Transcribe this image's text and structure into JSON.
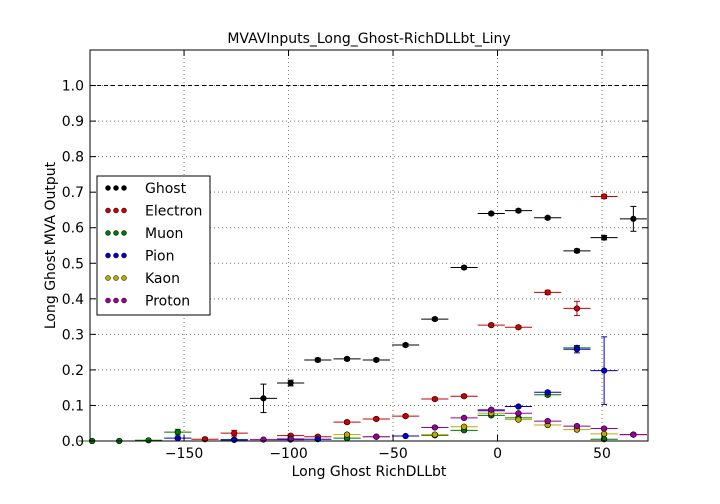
{
  "chart_data": {
    "type": "scatter",
    "title": "MVAVInputs_Long_Ghost-RichDLLbt_Liny",
    "xlabel": "Long Ghost RichDLLbt",
    "ylabel": "Long Ghost MVA Output",
    "xlim": [
      -195,
      72
    ],
    "ylim": [
      0,
      1.1
    ],
    "xticks": [
      -150,
      -100,
      -50,
      0,
      50
    ],
    "xtick_labels": [
      "−150",
      "−100",
      "−50",
      "0",
      "50"
    ],
    "yticks": [
      0.0,
      0.1,
      0.2,
      0.3,
      0.4,
      0.5,
      0.6,
      0.7,
      0.8,
      0.9,
      1.0
    ],
    "ytick_labels": [
      "0.0",
      "0.1",
      "0.2",
      "0.3",
      "0.4",
      "0.5",
      "0.6",
      "0.7",
      "0.8",
      "0.9",
      "1.0"
    ],
    "grid": true,
    "reference_line": 1.0,
    "legend_position": "center-left",
    "series": [
      {
        "name": "Ghost",
        "color": "#000000",
        "points": [
          {
            "x": -112,
            "y": 0.12,
            "xerr": 6.5,
            "yerr": 0.04
          },
          {
            "x": -99,
            "y": 0.163,
            "xerr": 6.5,
            "yerr": 0.008
          },
          {
            "x": -86,
            "y": 0.228,
            "xerr": 6.5,
            "yerr": 0.005
          },
          {
            "x": -72,
            "y": 0.231,
            "xerr": 6.5,
            "yerr": 0.004
          },
          {
            "x": -58,
            "y": 0.228,
            "xerr": 6.5,
            "yerr": 0.004
          },
          {
            "x": -44,
            "y": 0.27,
            "xerr": 6.5,
            "yerr": 0.004
          },
          {
            "x": -30,
            "y": 0.343,
            "xerr": 6.5,
            "yerr": 0.004
          },
          {
            "x": -16,
            "y": 0.488,
            "xerr": 6.5,
            "yerr": 0.004
          },
          {
            "x": -3,
            "y": 0.64,
            "xerr": 6.5,
            "yerr": 0.004
          },
          {
            "x": 10,
            "y": 0.648,
            "xerr": 6.5,
            "yerr": 0.004
          },
          {
            "x": 24,
            "y": 0.628,
            "xerr": 6.5,
            "yerr": 0.004
          },
          {
            "x": 38,
            "y": 0.535,
            "xerr": 6.5,
            "yerr": 0.005
          },
          {
            "x": 51,
            "y": 0.572,
            "xerr": 6.5,
            "yerr": 0.006
          },
          {
            "x": 65,
            "y": 0.625,
            "xerr": 6.5,
            "yerr": 0.035
          }
        ]
      },
      {
        "name": "Electron",
        "color": "#cc0000",
        "points": [
          {
            "x": -140,
            "y": 0.005,
            "xerr": 6.5,
            "yerr": 0.004
          },
          {
            "x": -126,
            "y": 0.022,
            "xerr": 6.5,
            "yerr": 0.008
          },
          {
            "x": -99,
            "y": 0.015,
            "xerr": 6.5,
            "yerr": 0.004
          },
          {
            "x": -86,
            "y": 0.012,
            "xerr": 6.5,
            "yerr": 0.004
          },
          {
            "x": -72,
            "y": 0.053,
            "xerr": 6.5,
            "yerr": 0.004
          },
          {
            "x": -58,
            "y": 0.062,
            "xerr": 6.5,
            "yerr": 0.004
          },
          {
            "x": -44,
            "y": 0.07,
            "xerr": 6.5,
            "yerr": 0.004
          },
          {
            "x": -30,
            "y": 0.118,
            "xerr": 6.5,
            "yerr": 0.004
          },
          {
            "x": -16,
            "y": 0.126,
            "xerr": 6.5,
            "yerr": 0.004
          },
          {
            "x": -3,
            "y": 0.326,
            "xerr": 6.5,
            "yerr": 0.004
          },
          {
            "x": 10,
            "y": 0.32,
            "xerr": 6.5,
            "yerr": 0.004
          },
          {
            "x": 24,
            "y": 0.418,
            "xerr": 6.5,
            "yerr": 0.006
          },
          {
            "x": 38,
            "y": 0.373,
            "xerr": 6.5,
            "yerr": 0.02
          },
          {
            "x": 51,
            "y": 0.688,
            "xerr": 6.5,
            "yerr": 0.006
          },
          {
            "x": 65,
            "y": 0.018,
            "xerr": 6.5,
            "yerr": 0.003
          }
        ]
      },
      {
        "name": "Muon",
        "color": "#007700",
        "points": [
          {
            "x": -194,
            "y": 0.0,
            "xerr": 6.5,
            "yerr": 0.002
          },
          {
            "x": -181,
            "y": 0.0,
            "xerr": 6.5,
            "yerr": 0.002
          },
          {
            "x": -167,
            "y": 0.002,
            "xerr": 6.5,
            "yerr": 0.002
          },
          {
            "x": -153,
            "y": 0.025,
            "xerr": 6.5,
            "yerr": 0.008
          },
          {
            "x": -126,
            "y": 0.004,
            "xerr": 6.5,
            "yerr": 0.003
          },
          {
            "x": -72,
            "y": 0.008,
            "xerr": 6.5,
            "yerr": 0.003
          },
          {
            "x": -30,
            "y": 0.016,
            "xerr": 6.5,
            "yerr": 0.003
          },
          {
            "x": -16,
            "y": 0.03,
            "xerr": 6.5,
            "yerr": 0.003
          },
          {
            "x": -3,
            "y": 0.072,
            "xerr": 6.5,
            "yerr": 0.003
          },
          {
            "x": 10,
            "y": 0.065,
            "xerr": 6.5,
            "yerr": 0.003
          },
          {
            "x": 24,
            "y": 0.13,
            "xerr": 6.5,
            "yerr": 0.004
          },
          {
            "x": 38,
            "y": 0.262,
            "xerr": 6.5,
            "yerr": 0.006
          },
          {
            "x": 51,
            "y": 0.005,
            "xerr": 6.5,
            "yerr": 0.003
          }
        ]
      },
      {
        "name": "Pion",
        "color": "#0000cc",
        "points": [
          {
            "x": -153,
            "y": 0.008,
            "xerr": 6.5,
            "yerr": 0.003
          },
          {
            "x": -126,
            "y": 0.003,
            "xerr": 6.5,
            "yerr": 0.002
          },
          {
            "x": -99,
            "y": 0.004,
            "xerr": 6.5,
            "yerr": 0.002
          },
          {
            "x": -86,
            "y": 0.005,
            "xerr": 6.5,
            "yerr": 0.002
          },
          {
            "x": -44,
            "y": 0.014,
            "xerr": 6.5,
            "yerr": 0.002
          },
          {
            "x": -3,
            "y": 0.085,
            "xerr": 6.5,
            "yerr": 0.003
          },
          {
            "x": 10,
            "y": 0.097,
            "xerr": 6.5,
            "yerr": 0.003
          },
          {
            "x": 24,
            "y": 0.137,
            "xerr": 6.5,
            "yerr": 0.004
          },
          {
            "x": 38,
            "y": 0.258,
            "xerr": 6.5,
            "yerr": 0.01
          },
          {
            "x": 51,
            "y": 0.198,
            "xerr": 6.5,
            "yerr": 0.095
          }
        ]
      },
      {
        "name": "Kaon",
        "color": "#bbaa00",
        "points": [
          {
            "x": -72,
            "y": 0.018,
            "xerr": 6.5,
            "yerr": 0.003
          },
          {
            "x": -58,
            "y": 0.012,
            "xerr": 6.5,
            "yerr": 0.003
          },
          {
            "x": -30,
            "y": 0.018,
            "xerr": 6.5,
            "yerr": 0.003
          },
          {
            "x": -16,
            "y": 0.04,
            "xerr": 6.5,
            "yerr": 0.003
          },
          {
            "x": -3,
            "y": 0.078,
            "xerr": 6.5,
            "yerr": 0.003
          },
          {
            "x": 10,
            "y": 0.06,
            "xerr": 6.5,
            "yerr": 0.003
          },
          {
            "x": 24,
            "y": 0.045,
            "xerr": 6.5,
            "yerr": 0.003
          },
          {
            "x": 38,
            "y": 0.032,
            "xerr": 6.5,
            "yerr": 0.003
          },
          {
            "x": 51,
            "y": 0.02,
            "xerr": 6.5,
            "yerr": 0.003
          }
        ]
      },
      {
        "name": "Proton",
        "color": "#990099",
        "points": [
          {
            "x": -112,
            "y": 0.004,
            "xerr": 6.5,
            "yerr": 0.002
          },
          {
            "x": -99,
            "y": 0.006,
            "xerr": 6.5,
            "yerr": 0.002
          },
          {
            "x": -58,
            "y": 0.012,
            "xerr": 6.5,
            "yerr": 0.002
          },
          {
            "x": -30,
            "y": 0.038,
            "xerr": 6.5,
            "yerr": 0.003
          },
          {
            "x": -16,
            "y": 0.065,
            "xerr": 6.5,
            "yerr": 0.003
          },
          {
            "x": -3,
            "y": 0.088,
            "xerr": 6.5,
            "yerr": 0.003
          },
          {
            "x": 10,
            "y": 0.078,
            "xerr": 6.5,
            "yerr": 0.003
          },
          {
            "x": 24,
            "y": 0.056,
            "xerr": 6.5,
            "yerr": 0.003
          },
          {
            "x": 38,
            "y": 0.042,
            "xerr": 6.5,
            "yerr": 0.003
          },
          {
            "x": 51,
            "y": 0.035,
            "xerr": 6.5,
            "yerr": 0.003
          },
          {
            "x": 65,
            "y": 0.018,
            "xerr": 6.5,
            "yerr": 0.003
          }
        ]
      }
    ]
  }
}
